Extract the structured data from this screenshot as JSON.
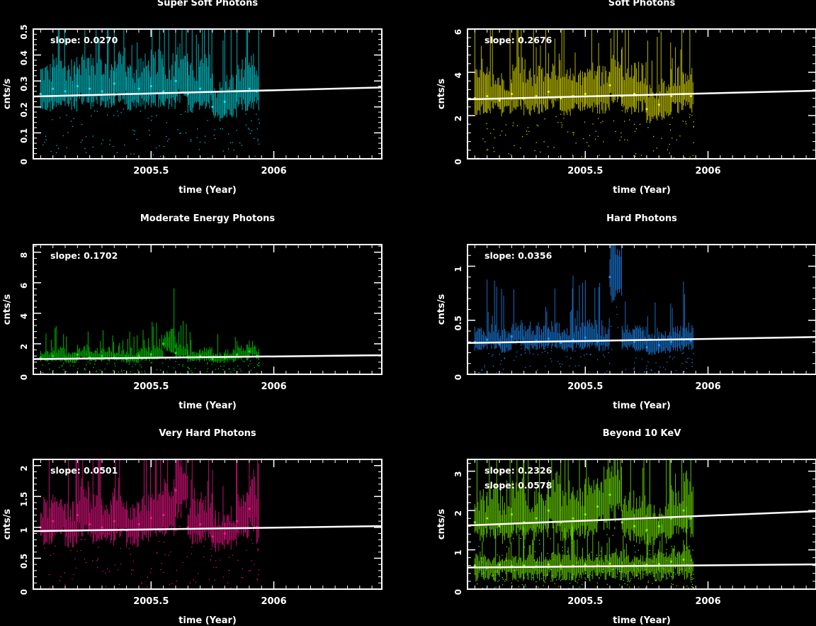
{
  "chart_data": [
    {
      "type": "scatter",
      "title": "Super Soft Photons",
      "xlabel": "time (Year)",
      "ylabel": "cnts/s",
      "xlim": [
        2005.02,
        2006.44
      ],
      "ylim": [
        0,
        0.5
      ],
      "x_ticks": [
        2005.5,
        2006
      ],
      "y_ticks": [
        0,
        0.1,
        0.2,
        0.3,
        0.4,
        0.5
      ],
      "color": "#00e5ee",
      "data_end": 2005.94,
      "points": {
        "x": [
          2005.05,
          2005.1,
          2005.15,
          2005.2,
          2005.25,
          2005.3,
          2005.35,
          2005.4,
          2005.45,
          2005.5,
          2005.55,
          2005.6,
          2005.65,
          2005.7,
          2005.75,
          2005.8,
          2005.85,
          2005.9,
          2005.93
        ],
        "y": [
          0.25,
          0.27,
          0.26,
          0.28,
          0.27,
          0.26,
          0.29,
          0.25,
          0.27,
          0.28,
          0.26,
          0.3,
          0.25,
          0.27,
          0.2,
          0.22,
          0.26,
          0.27,
          0.26
        ]
      },
      "fits": [
        {
          "label": "slope: 0.0270",
          "y_start": 0.24,
          "y_end": 0.275
        }
      ]
    },
    {
      "type": "scatter",
      "title": "Soft Photons",
      "xlabel": "time (Year)",
      "ylabel": "cnts/s",
      "xlim": [
        2005.02,
        2006.44
      ],
      "ylim": [
        0,
        6
      ],
      "x_ticks": [
        2005.5,
        2006
      ],
      "y_ticks": [
        0,
        2,
        4,
        6
      ],
      "color": "#f0f000",
      "data_end": 2005.94,
      "points": {
        "x": [
          2005.05,
          2005.1,
          2005.15,
          2005.2,
          2005.25,
          2005.3,
          2005.35,
          2005.4,
          2005.45,
          2005.5,
          2005.55,
          2005.6,
          2005.65,
          2005.7,
          2005.75,
          2005.8,
          2005.85,
          2005.9,
          2005.93
        ],
        "y": [
          2.8,
          2.9,
          2.7,
          3.0,
          2.8,
          2.9,
          3.1,
          2.8,
          2.9,
          3.0,
          2.9,
          3.4,
          2.9,
          3.0,
          2.3,
          2.5,
          2.9,
          3.0,
          2.9
        ]
      },
      "fits": [
        {
          "label": "slope: 0.2676",
          "y_start": 2.75,
          "y_end": 3.15
        }
      ]
    },
    {
      "type": "scatter",
      "title": "Moderate Energy Photons",
      "xlabel": "time (Year)",
      "ylabel": "cnts/s",
      "xlim": [
        2005.02,
        2006.44
      ],
      "ylim": [
        0,
        8.5
      ],
      "x_ticks": [
        2005.5,
        2006
      ],
      "y_ticks": [
        0,
        2,
        4,
        6,
        8
      ],
      "color": "#00ee00",
      "data_end": 2005.94,
      "points": {
        "x": [
          2005.05,
          2005.1,
          2005.15,
          2005.2,
          2005.25,
          2005.3,
          2005.35,
          2005.4,
          2005.45,
          2005.5,
          2005.55,
          2005.6,
          2005.65,
          2005.7,
          2005.75,
          2005.8,
          2005.85,
          2005.9,
          2005.93
        ],
        "y": [
          1.1,
          1.2,
          1.0,
          1.3,
          1.1,
          1.2,
          1.1,
          1.0,
          1.2,
          1.3,
          2.0,
          1.4,
          1.1,
          1.2,
          1.0,
          1.1,
          1.3,
          1.5,
          1.2
        ]
      },
      "fits": [
        {
          "label": "slope: 0.1702",
          "y_start": 1.0,
          "y_end": 1.25
        }
      ]
    },
    {
      "type": "scatter",
      "title": "Hard Photons",
      "xlabel": "time (Year)",
      "ylabel": "cnts/s",
      "xlim": [
        2005.02,
        2006.44
      ],
      "ylim": [
        0,
        1.2
      ],
      "x_ticks": [
        2005.5,
        2006
      ],
      "y_ticks": [
        0,
        0.5,
        1
      ],
      "color": "#1e90ff",
      "data_end": 2005.94,
      "points": {
        "x": [
          2005.05,
          2005.1,
          2005.15,
          2005.2,
          2005.25,
          2005.3,
          2005.35,
          2005.4,
          2005.45,
          2005.5,
          2005.55,
          2005.6,
          2005.65,
          2005.7,
          2005.75,
          2005.8,
          2005.85,
          2005.9,
          2005.93
        ],
        "y": [
          0.3,
          0.32,
          0.28,
          0.35,
          0.3,
          0.31,
          0.33,
          0.29,
          0.32,
          0.34,
          0.3,
          0.9,
          0.31,
          0.3,
          0.25,
          0.27,
          0.3,
          0.32,
          0.31
        ]
      },
      "fits": [
        {
          "label": "slope: 0.0356",
          "y_start": 0.29,
          "y_end": 0.345
        }
      ]
    },
    {
      "type": "scatter",
      "title": "Very Hard  Photons",
      "xlabel": "time (Year)",
      "ylabel": "cnts/s",
      "xlim": [
        2005.02,
        2006.44
      ],
      "ylim": [
        0,
        2.1
      ],
      "x_ticks": [
        2005.5,
        2006
      ],
      "y_ticks": [
        0,
        0.5,
        1,
        1.5,
        2
      ],
      "color": "#ff1493",
      "data_end": 2005.94,
      "points": {
        "x": [
          2005.05,
          2005.1,
          2005.15,
          2005.2,
          2005.25,
          2005.3,
          2005.35,
          2005.4,
          2005.45,
          2005.5,
          2005.55,
          2005.6,
          2005.65,
          2005.7,
          2005.75,
          2005.8,
          2005.85,
          2005.9,
          2005.93
        ],
        "y": [
          1.0,
          1.1,
          0.95,
          1.2,
          1.05,
          1.0,
          1.1,
          0.95,
          1.05,
          1.15,
          1.2,
          1.6,
          1.0,
          1.05,
          0.85,
          0.9,
          1.1,
          1.3,
          1.0
        ]
      },
      "fits": [
        {
          "label": "slope: 0.0501",
          "y_start": 0.94,
          "y_end": 1.02
        }
      ]
    },
    {
      "type": "scatter",
      "title": "Beyond 10 KeV",
      "xlabel": "time (Year)",
      "ylabel": "cnts/s",
      "xlim": [
        2005.02,
        2006.44
      ],
      "ylim": [
        0,
        3.3
      ],
      "x_ticks": [
        2005.5,
        2006
      ],
      "y_ticks": [
        0,
        1,
        2,
        3
      ],
      "color": "#7cfc00",
      "data_end": 2005.94,
      "points": {
        "x": [
          2005.05,
          2005.1,
          2005.15,
          2005.2,
          2005.25,
          2005.3,
          2005.35,
          2005.4,
          2005.45,
          2005.5,
          2005.55,
          2005.6,
          2005.65,
          2005.7,
          2005.75,
          2005.8,
          2005.85,
          2005.9,
          2005.93
        ],
        "y": [
          1.7,
          1.8,
          1.6,
          1.9,
          1.7,
          1.8,
          2.0,
          1.7,
          1.8,
          1.9,
          2.1,
          2.4,
          1.7,
          1.6,
          1.5,
          1.6,
          1.8,
          2.0,
          1.8
        ]
      },
      "points_low": {
        "x": [
          2005.05,
          2005.1,
          2005.15,
          2005.2,
          2005.25,
          2005.3,
          2005.35,
          2005.4,
          2005.45,
          2005.5,
          2005.55,
          2005.6,
          2005.65,
          2005.7,
          2005.75,
          2005.8,
          2005.85,
          2005.9,
          2005.93
        ],
        "y": [
          0.6,
          0.55,
          0.62,
          0.58,
          0.6,
          0.57,
          0.63,
          0.6,
          0.59,
          0.61,
          0.6,
          0.65,
          0.58,
          0.6,
          0.62,
          0.64,
          0.7,
          0.75,
          0.6
        ]
      },
      "fits": [
        {
          "label": "slope: 0.2326",
          "y_start": 1.62,
          "y_end": 1.98
        },
        {
          "label": "slope: 0.0578",
          "y_start": 0.55,
          "y_end": 0.63
        }
      ]
    }
  ]
}
